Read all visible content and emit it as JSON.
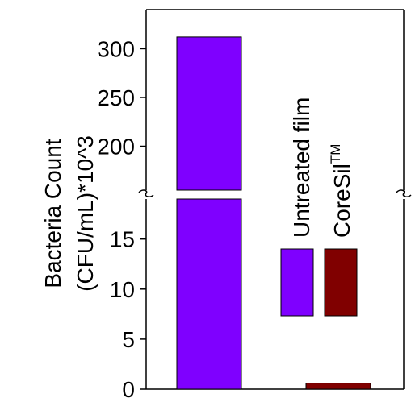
{
  "chart_data": {
    "type": "bar",
    "categories": [
      "Untreated film",
      "CoreSil™"
    ],
    "values": [
      312,
      0.6
    ],
    "ylabel_line1": "Bacteria Count",
    "ylabel_line2": "(CFU/mL)*10^3",
    "broken_axis": true,
    "segments": [
      {
        "range": [
          0,
          19
        ],
        "ticks": [
          0,
          5,
          10,
          15
        ]
      },
      {
        "range": [
          155,
          340
        ],
        "ticks": [
          200,
          250,
          300
        ]
      }
    ],
    "legend": {
      "placement": "inside-right",
      "orientation": "vertical-text",
      "items": [
        {
          "label": "Untreated film",
          "color": "#7f00ff"
        },
        {
          "label": "CoreSil",
          "superscript": "TM",
          "color": "#800000"
        }
      ]
    },
    "colors": {
      "untreated": "#7f00ff",
      "coresil": "#800000"
    }
  }
}
